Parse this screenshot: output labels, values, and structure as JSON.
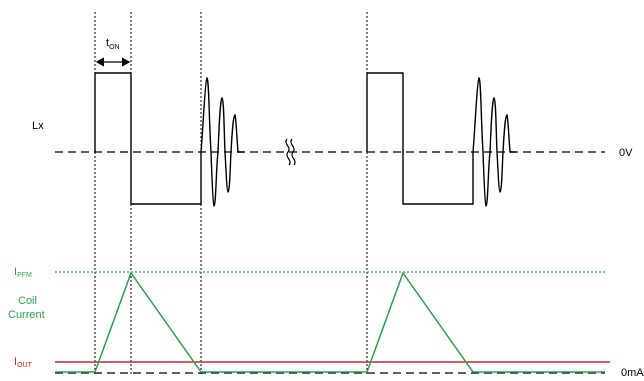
{
  "labels": {
    "lx": "Lx",
    "zero_v": "0V",
    "zero_ma": "0mA",
    "t_on_main": "t",
    "t_on_sub": "ON",
    "i_pfm_main": "I",
    "i_pfm_sub": "PFM",
    "i_out_main": "I",
    "i_out_sub": "OUT",
    "coil_line1": "Coil",
    "coil_line2": "Current"
  },
  "colors": {
    "waveform": "#000000",
    "coil_current": "#29a34a",
    "i_pfm_level": "#29a34a",
    "i_out_level": "#d92020",
    "markers": "#000000"
  },
  "icons": {
    "break": "time-break-icon",
    "arrow": "double-arrow-icon"
  }
}
